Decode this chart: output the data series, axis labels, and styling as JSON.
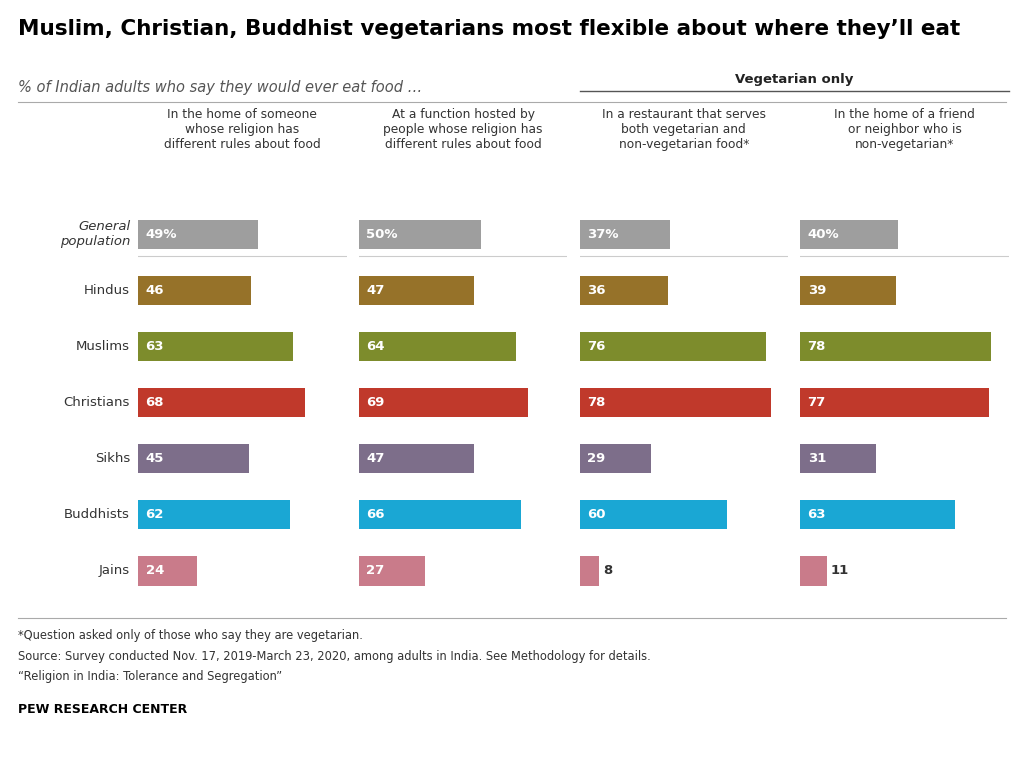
{
  "title": "Muslim, Christian, Buddhist vegetarians most flexible about where they’ll eat",
  "subtitle": "% of Indian adults who say they would ever eat food …",
  "vegetarian_only_label": "Vegetarian only",
  "col_headers": [
    "In the home of someone\nwhose religion has\ndifferent rules about food",
    "At a function hosted by\npeople whose religion has\ndifferent rules about food",
    "In a restaurant that serves\nboth vegetarian and\nnon-vegetarian food*",
    "In the home of a friend\nor neighbor who is\nnon-vegetarian*"
  ],
  "row_labels": [
    "General\npopulation",
    "Hindus",
    "Muslims",
    "Christians",
    "Sikhs",
    "Buddhists",
    "Jains"
  ],
  "values": [
    [
      49,
      50,
      37,
      40
    ],
    [
      46,
      47,
      36,
      39
    ],
    [
      63,
      64,
      76,
      78
    ],
    [
      68,
      69,
      78,
      77
    ],
    [
      45,
      47,
      29,
      31
    ],
    [
      62,
      66,
      60,
      63
    ],
    [
      24,
      27,
      8,
      11
    ]
  ],
  "colors": [
    "#9e9e9e",
    "#967229",
    "#7d8c2c",
    "#c0392b",
    "#7d6e8a",
    "#1aa7d4",
    "#c97b8a"
  ],
  "footnote1": "*Question asked only of those who say they are vegetarian.",
  "footnote2": "Source: Survey conducted Nov. 17, 2019-March 23, 2020, among adults in India. See Methodology for details.",
  "footnote3": "“Religion in India: Tolerance and Segregation”",
  "source_label": "PEW RESEARCH CENTER",
  "veg_only_cols": [
    2,
    3
  ],
  "xlim": 85,
  "bar_height": 0.52,
  "small_val_threshold": 15
}
